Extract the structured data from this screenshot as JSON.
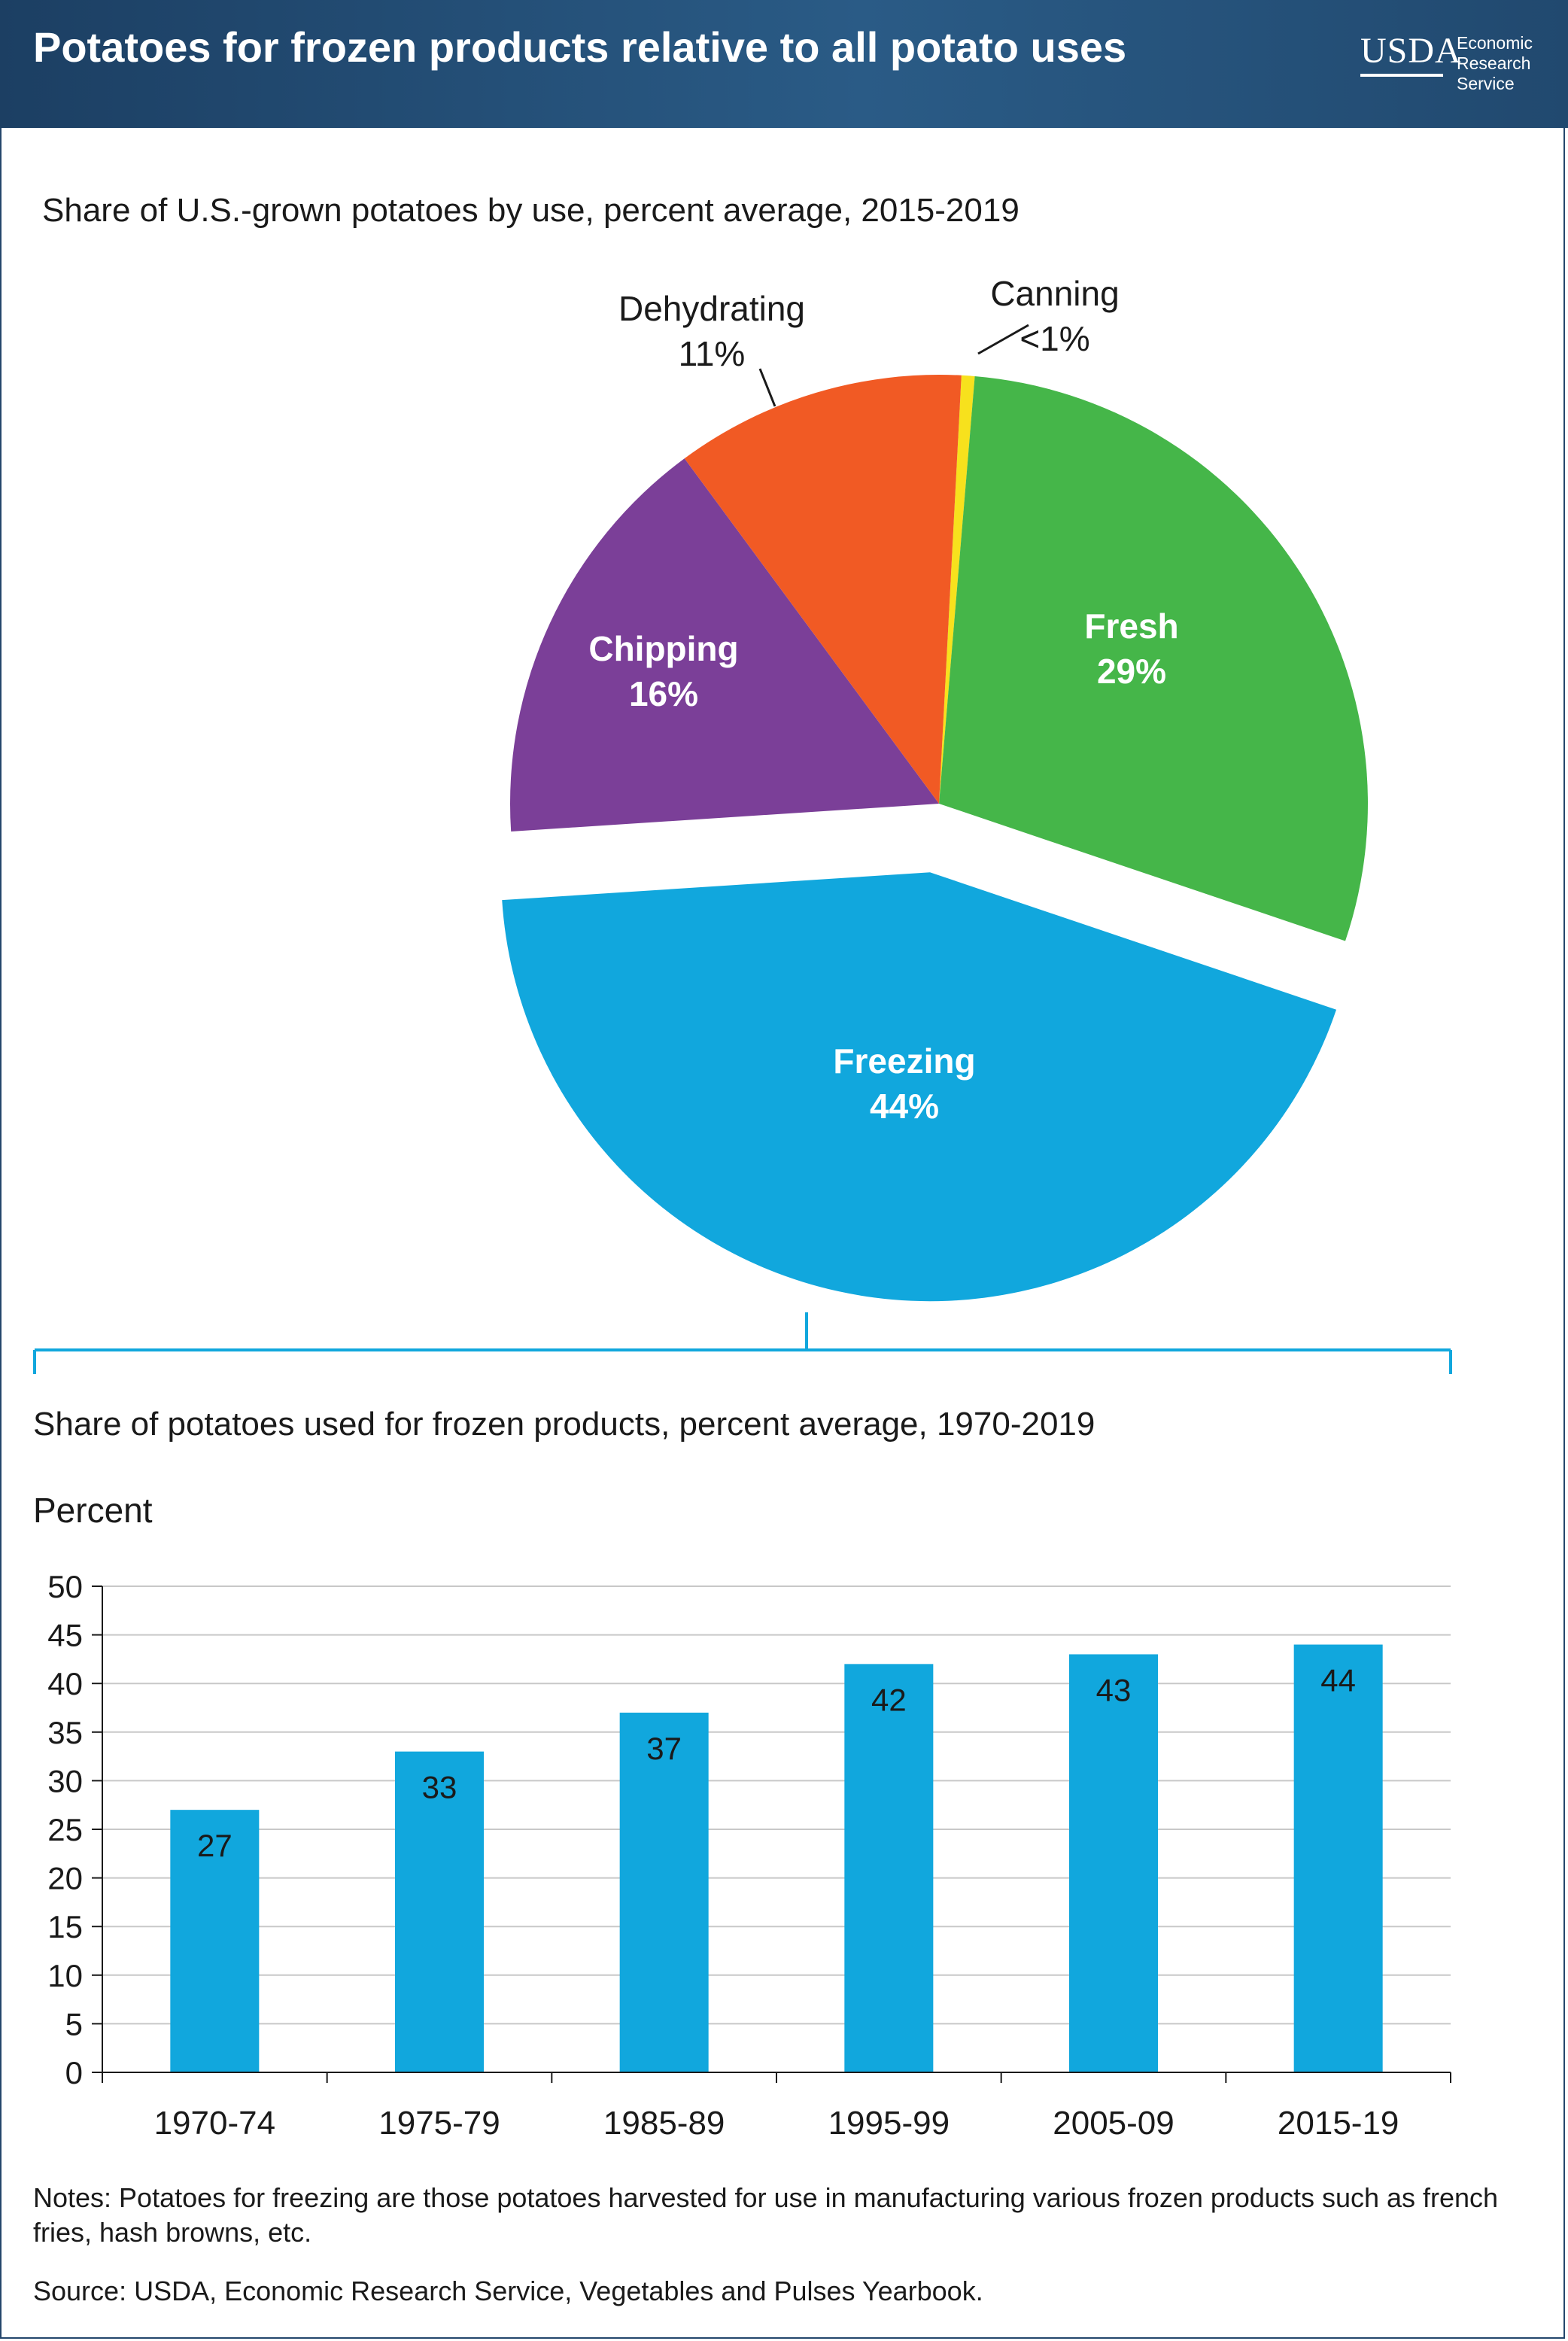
{
  "header": {
    "title": "Potatoes for frozen products relative to all potato uses",
    "logo_mark": "USDA",
    "logo_text": "Economic\nResearch\nService"
  },
  "pie": {
    "subtitle": "Share of U.S.-grown potatoes by use, percent average, 2015-2019",
    "slices": [
      {
        "name": "Canning",
        "label": "<1%",
        "value": 0.5,
        "color": "#f7e11d"
      },
      {
        "name": "Fresh",
        "label": "29%",
        "value": 29,
        "color": "#45b649"
      },
      {
        "name": "Freezing",
        "label": "44%",
        "value": 44,
        "color": "#11a7dd"
      },
      {
        "name": "Chipping",
        "label": "16%",
        "value": 16,
        "color": "#7b3f98"
      },
      {
        "name": "Dehydrating",
        "label": "11%",
        "value": 11,
        "color": "#f15a24"
      }
    ]
  },
  "chart_data": {
    "type": "bar",
    "title": "Share of potatoes used for frozen products, percent average, 1970-2019",
    "ylabel": "Percent",
    "xlabel": "",
    "categories": [
      "1970-74",
      "1975-79",
      "1985-89",
      "1995-99",
      "2005-09",
      "2015-19"
    ],
    "values": [
      27,
      33,
      37,
      42,
      43,
      44
    ],
    "value_labels": [
      "27",
      "33",
      "37",
      "42",
      "43",
      "44"
    ],
    "ylim": [
      0,
      50
    ],
    "yticks": [
      0,
      5,
      10,
      15,
      20,
      25,
      30,
      35,
      40,
      45,
      50
    ],
    "grid": true,
    "bar_color": "#11a7dd"
  },
  "footer": {
    "notes": "Notes: Potatoes for freezing are those potatoes harvested for use in manufacturing various frozen products such as french fries, hash browns, etc.",
    "source": "Source: USDA, Economic Research Service, Vegetables and Pulses Yearbook."
  }
}
